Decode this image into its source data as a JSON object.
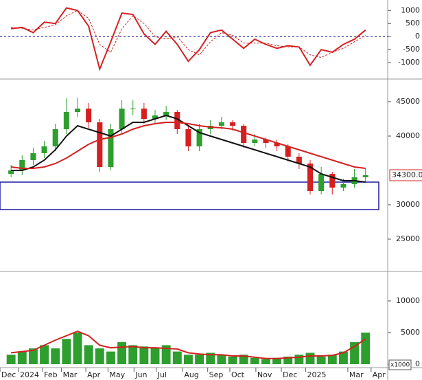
{
  "chart_data": [
    {
      "type": "line",
      "zero_line": true,
      "x": [
        2,
        4,
        6,
        8,
        10,
        12,
        14,
        16,
        18,
        20,
        22,
        24,
        26,
        28,
        30,
        32,
        34,
        36,
        38,
        40,
        42,
        44,
        46,
        48,
        50,
        52,
        54,
        56,
        58,
        60,
        62,
        64,
        66
      ],
      "xlim": [
        0,
        70
      ],
      "ylim": [
        -1550,
        1350
      ],
      "yticks": [
        -1000,
        -500,
        0,
        500,
        1000
      ],
      "series": [
        {
          "color": "#d42020",
          "dash": false,
          "values": [
            300,
            350,
            150,
            550,
            500,
            1100,
            1000,
            400,
            -1250,
            -200,
            900,
            850,
            100,
            -300,
            200,
            -300,
            -950,
            -500,
            150,
            250,
            -100,
            -450,
            -100,
            -300,
            -450,
            -350,
            -400,
            -1100,
            -500,
            -600,
            -300,
            -100,
            250
          ]
        },
        {
          "color": "#d42020",
          "dash": true,
          "values": [
            350,
            320,
            250,
            350,
            450,
            800,
            1000,
            700,
            -300,
            -600,
            300,
            800,
            500,
            0,
            -100,
            0,
            -500,
            -700,
            -200,
            150,
            50,
            -250,
            -250,
            -250,
            -350,
            -400,
            -400,
            -700,
            -800,
            -600,
            -450,
            -200,
            50
          ]
        }
      ]
    },
    {
      "type": "candlestick",
      "x": [
        2,
        4,
        6,
        8,
        10,
        12,
        14,
        16,
        18,
        20,
        22,
        24,
        26,
        28,
        30,
        32,
        34,
        36,
        38,
        40,
        42,
        44,
        46,
        48,
        50,
        52,
        54,
        56,
        58,
        60,
        62,
        64,
        66
      ],
      "xlim": [
        0,
        70
      ],
      "ylim": [
        20600,
        48000
      ],
      "yticks": [
        25000,
        30000,
        40000,
        45000
      ],
      "up_color": "#2e9e2e",
      "down_color": "#d42020",
      "open": [
        34500,
        35000,
        36500,
        37500,
        38500,
        41000,
        43500,
        44000,
        42000,
        35500,
        41000,
        44000,
        44000,
        42500,
        43000,
        43500,
        41000,
        38500,
        41000,
        41500,
        42000,
        41500,
        39000,
        39500,
        39000,
        38500,
        37000,
        36000,
        32000,
        34500,
        32500,
        33000,
        34000
      ],
      "high": [
        35800,
        37200,
        38300,
        39300,
        41800,
        45500,
        45600,
        44800,
        42500,
        41800,
        45200,
        45200,
        44800,
        43800,
        44400,
        43800,
        41500,
        41800,
        42300,
        42800,
        42300,
        41800,
        40300,
        39800,
        39500,
        38800,
        37500,
        36500,
        35500,
        34800,
        33800,
        35200,
        35300
      ],
      "low": [
        34000,
        34300,
        35800,
        36800,
        37800,
        40300,
        42800,
        41200,
        34800,
        35000,
        40300,
        43000,
        41800,
        41800,
        42300,
        40300,
        37800,
        37800,
        40300,
        41000,
        40800,
        38300,
        38500,
        38300,
        37800,
        36300,
        35200,
        31500,
        31500,
        31500,
        32000,
        32500,
        33300
      ],
      "close": [
        35000,
        36500,
        37500,
        38500,
        41000,
        43500,
        44000,
        42000,
        35500,
        41000,
        44000,
        44000,
        42500,
        43000,
        43500,
        41000,
        38500,
        41000,
        41500,
        42000,
        41500,
        39000,
        39500,
        39000,
        38500,
        37000,
        36000,
        32000,
        34500,
        32500,
        33000,
        34000,
        34300
      ],
      "series": [
        {
          "color": "#111111",
          "values": [
            35000,
            35000,
            35500,
            36500,
            38000,
            40000,
            41500,
            41000,
            40500,
            40000,
            41000,
            42000,
            42000,
            42500,
            43000,
            42500,
            41500,
            40500,
            40000,
            39500,
            39000,
            38500,
            38000,
            37500,
            37000,
            36500,
            36000,
            35500,
            34500,
            34000,
            33500,
            33500,
            33300
          ]
        },
        {
          "color": "#d42020",
          "values": [
            35500,
            35300,
            35300,
            35500,
            36000,
            36800,
            37800,
            38800,
            39500,
            39800,
            40300,
            41000,
            41500,
            41800,
            42000,
            42000,
            41800,
            41500,
            41300,
            41200,
            41000,
            40500,
            40000,
            39500,
            39000,
            38500,
            38000,
            37500,
            37000,
            36500,
            36000,
            35500,
            35300
          ]
        }
      ],
      "highlight_range": [
        29300,
        33300
      ],
      "highlight_color": "#1a1aa0",
      "last_value": {
        "value": 34300,
        "label": "34300.00"
      }
    },
    {
      "type": "bar",
      "unit_label": "x1000",
      "x": [
        2,
        4,
        6,
        8,
        10,
        12,
        14,
        16,
        18,
        20,
        22,
        24,
        26,
        28,
        30,
        32,
        34,
        36,
        38,
        40,
        42,
        44,
        46,
        48,
        50,
        52,
        54,
        56,
        58,
        60,
        62,
        64,
        66
      ],
      "xlim": [
        0,
        70
      ],
      "ylim": [
        0,
        14450
      ],
      "yticks": [
        0,
        5000,
        10000
      ],
      "color": "#2e9e2e",
      "values": [
        1500,
        2000,
        2500,
        3000,
        2500,
        4000,
        5000,
        3000,
        2500,
        2000,
        3500,
        3000,
        2800,
        2500,
        3000,
        2000,
        1500,
        1500,
        1800,
        1500,
        1200,
        1500,
        1000,
        800,
        1000,
        1200,
        1500,
        1800,
        1200,
        1500,
        2000,
        3500,
        5000
      ],
      "series": [
        {
          "color": "#d42020",
          "values": [
            1800,
            2000,
            2200,
            3000,
            3800,
            4500,
            5200,
            4500,
            3000,
            2600,
            2700,
            2800,
            2600,
            2600,
            2500,
            2400,
            1800,
            1600,
            1500,
            1500,
            1300,
            1300,
            1100,
            900,
            900,
            1000,
            1100,
            1300,
            1300,
            1400,
            1800,
            2800,
            4000
          ]
        }
      ],
      "xticks": [
        {
          "value": 0,
          "label": "Dec"
        },
        {
          "value": 3.35,
          "label": "2024"
        },
        {
          "value": 7.7,
          "label": "Feb"
        },
        {
          "value": 11.1,
          "label": "Mar"
        },
        {
          "value": 15.5,
          "label": "Apr"
        },
        {
          "value": 19.5,
          "label": "May"
        },
        {
          "value": 24.2,
          "label": "Jun"
        },
        {
          "value": 28.2,
          "label": "Jul"
        },
        {
          "value": 33,
          "label": "Aug"
        },
        {
          "value": 37.5,
          "label": "Sep"
        },
        {
          "value": 41.5,
          "label": "Oct"
        },
        {
          "value": 46.2,
          "label": "Nov"
        },
        {
          "value": 50.8,
          "label": "Dec"
        },
        {
          "value": 55.2,
          "label": "2025"
        },
        {
          "value": 62.8,
          "label": "Mar"
        },
        {
          "value": 67,
          "label": "Apr"
        }
      ]
    }
  ]
}
